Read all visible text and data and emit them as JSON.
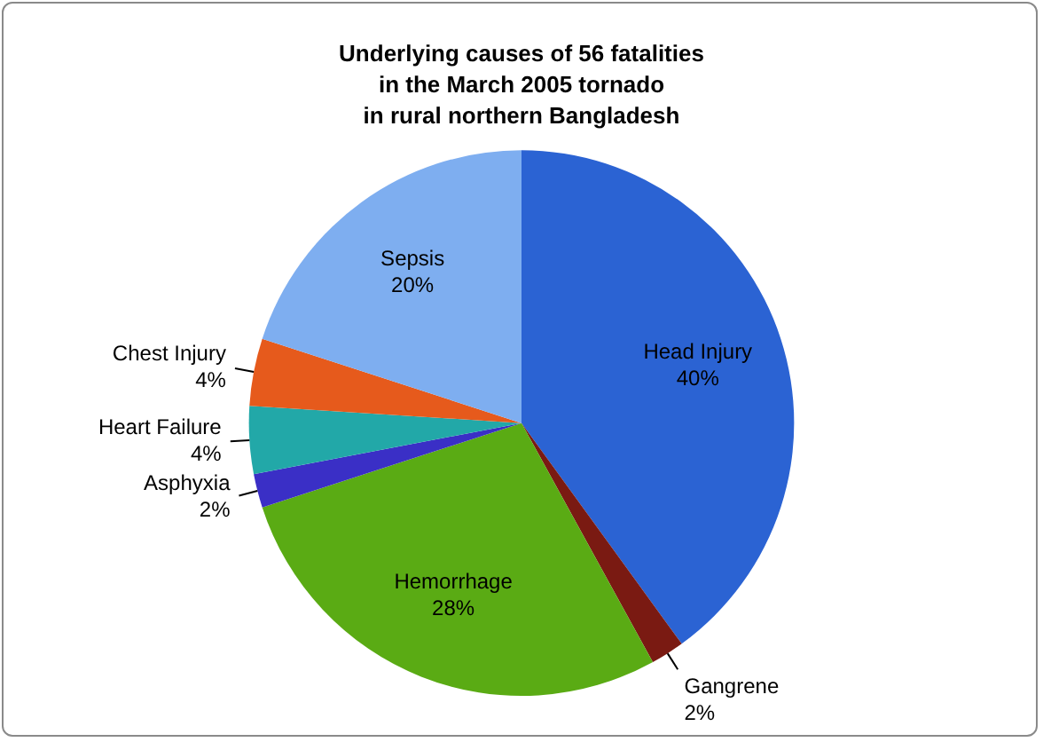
{
  "chart_data": {
    "type": "pie",
    "title": "Underlying causes of 56 fatalities\nin the March 2005 tornado\nin rural northern Bangladesh",
    "categories": [
      "Head Injury",
      "Gangrene",
      "Hemorrhage",
      "Asphyxia",
      "Heart Failure",
      "Chest Injury",
      "Sepsis"
    ],
    "values": [
      40,
      2,
      28,
      2,
      4,
      4,
      20
    ],
    "value_labels": [
      "40%",
      "2%",
      "28%",
      "2%",
      "4%",
      "4%",
      "20%"
    ],
    "colors": [
      "#2b63d3",
      "#7a1a12",
      "#5aab14",
      "#3a2fc6",
      "#22a8a8",
      "#e65a1c",
      "#7eaef0"
    ],
    "legend": false
  }
}
